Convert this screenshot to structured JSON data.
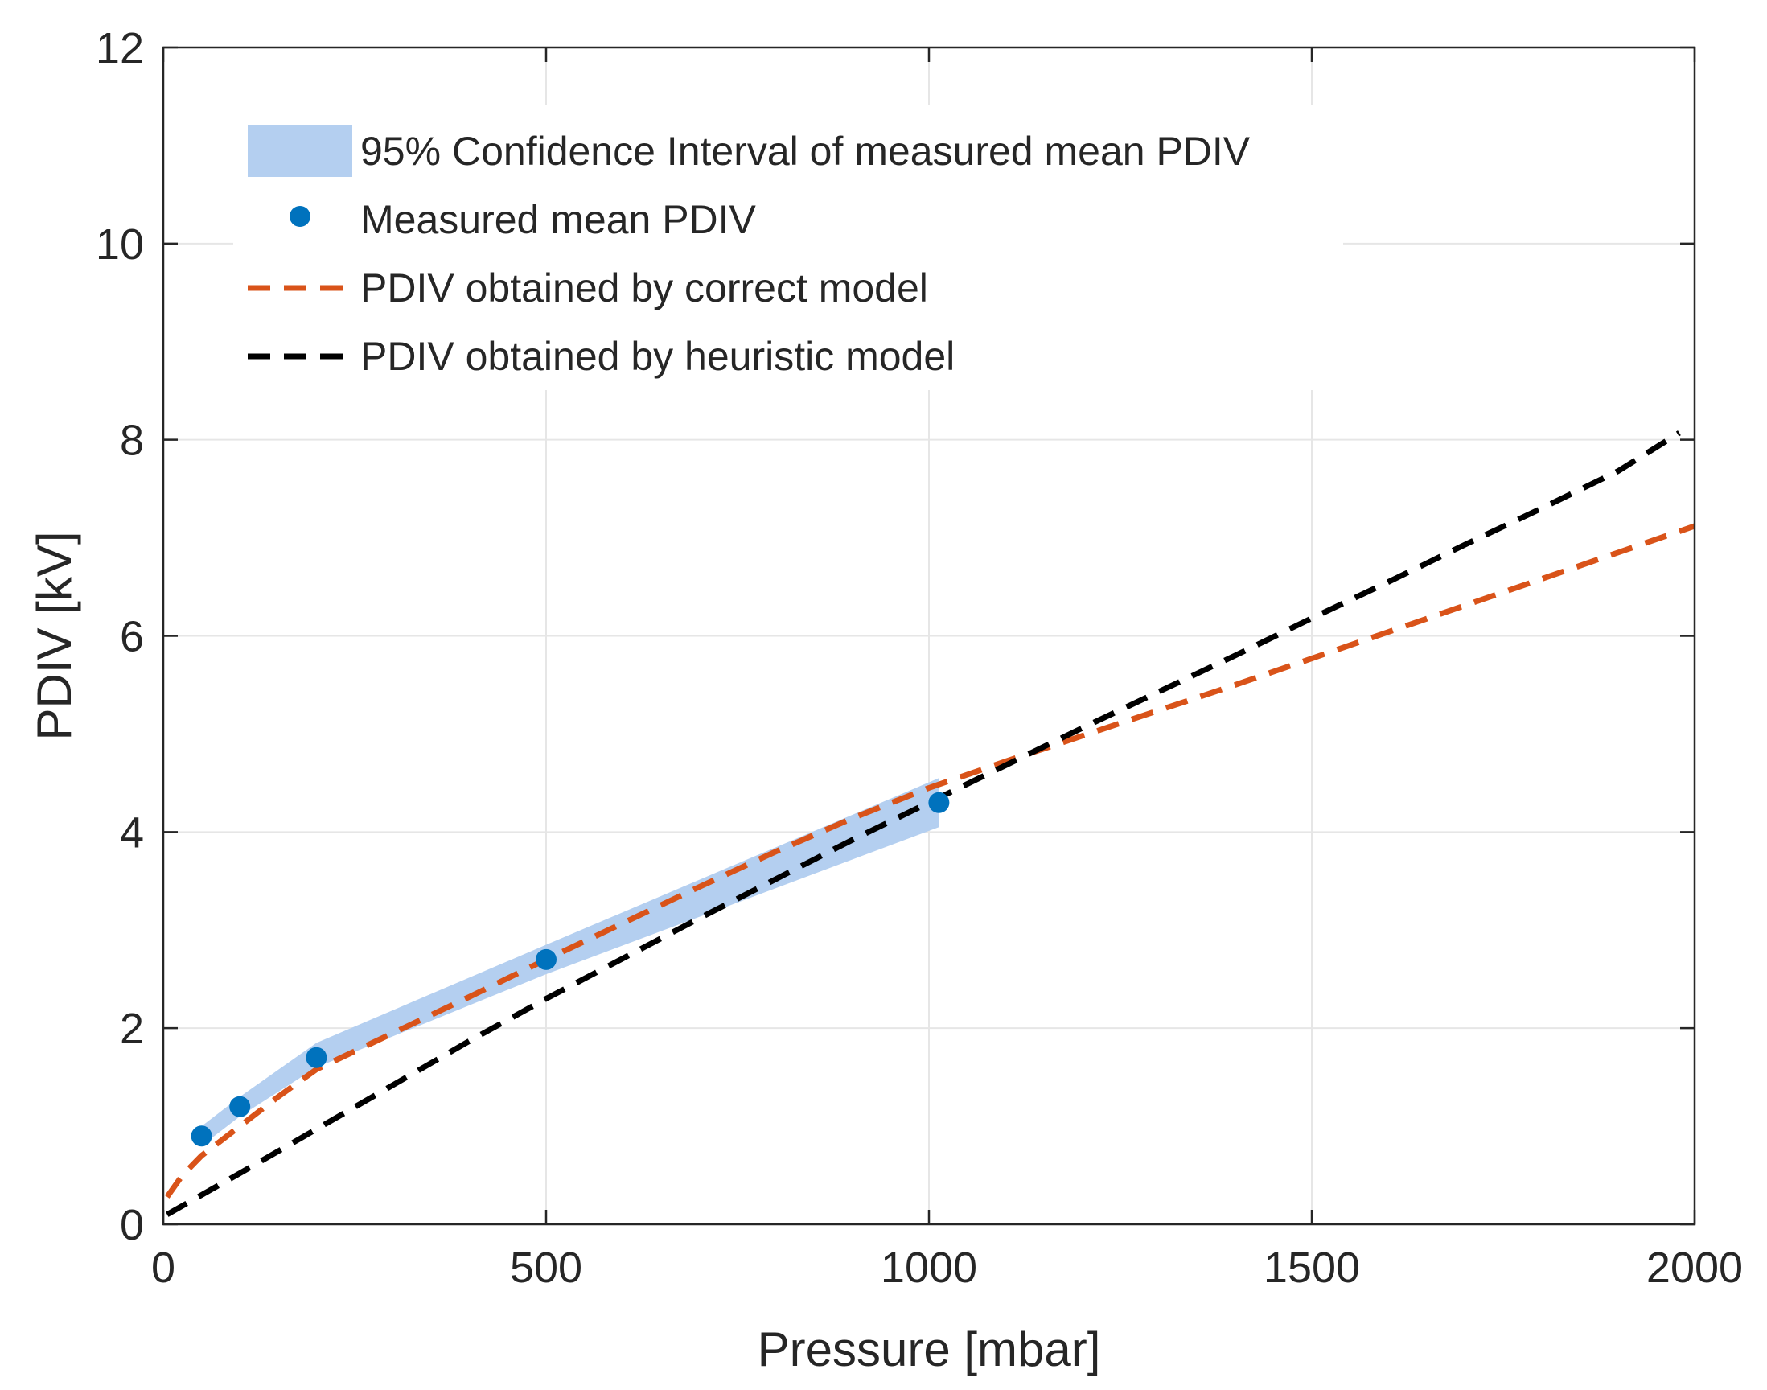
{
  "chart_data": {
    "type": "line",
    "title": "",
    "xlabel": "Pressure [mbar]",
    "ylabel": "PDIV [kV]",
    "xlim": [
      0,
      2000
    ],
    "ylim": [
      0,
      12
    ],
    "xticks": [
      0,
      500,
      1000,
      1500,
      2000
    ],
    "xtick_labels": [
      "0",
      "500",
      "1000",
      "1500",
      "2000"
    ],
    "yticks": [
      0,
      2,
      4,
      6,
      8,
      10,
      12
    ],
    "ytick_labels": [
      "0",
      "2",
      "4",
      "6",
      "8",
      "10",
      "12"
    ],
    "grid": true,
    "legend_position": "top-left",
    "series": [
      {
        "name": "95% Confidence Interval of measured mean PDIV",
        "kind": "band",
        "color": "#b4cff0",
        "x": [
          50,
          100,
          200,
          500,
          1013
        ],
        "lower": [
          0.8,
          1.1,
          1.6,
          2.55,
          4.05
        ],
        "upper": [
          1.0,
          1.3,
          1.85,
          2.85,
          4.55
        ]
      },
      {
        "name": "Measured mean PDIV",
        "kind": "points",
        "color": "#0072bd",
        "x": [
          50,
          100,
          200,
          500,
          1013
        ],
        "y": [
          0.9,
          1.2,
          1.7,
          2.7,
          4.3
        ]
      },
      {
        "name": "PDIV obtained by correct model",
        "kind": "dashed-line",
        "color": "#d95319",
        "x": [
          5,
          25,
          50,
          100,
          150,
          200,
          300,
          400,
          500,
          600,
          700,
          800,
          900,
          1000,
          1100,
          1200,
          1300,
          1400,
          1500,
          1600,
          1700,
          1800,
          1900,
          2000
        ],
        "y": [
          0.28,
          0.5,
          0.7,
          1.0,
          1.3,
          1.58,
          1.95,
          2.32,
          2.7,
          3.07,
          3.44,
          3.8,
          4.14,
          4.45,
          4.72,
          4.98,
          5.24,
          5.5,
          5.77,
          6.04,
          6.31,
          6.58,
          6.85,
          7.12
        ]
      },
      {
        "name": "PDIV obtained by heuristic model",
        "kind": "dashed-line",
        "color": "#000000",
        "x": [
          5,
          100,
          200,
          300,
          400,
          500,
          600,
          700,
          800,
          900,
          1000,
          1100,
          1200,
          1300,
          1400,
          1500,
          1600,
          1700,
          1800,
          1900,
          1980
        ],
        "y": [
          0.1,
          0.52,
          0.97,
          1.42,
          1.87,
          2.3,
          2.71,
          3.12,
          3.52,
          3.92,
          4.3,
          4.68,
          5.06,
          5.43,
          5.8,
          6.18,
          6.55,
          6.93,
          7.3,
          7.68,
          8.07
        ]
      }
    ]
  }
}
